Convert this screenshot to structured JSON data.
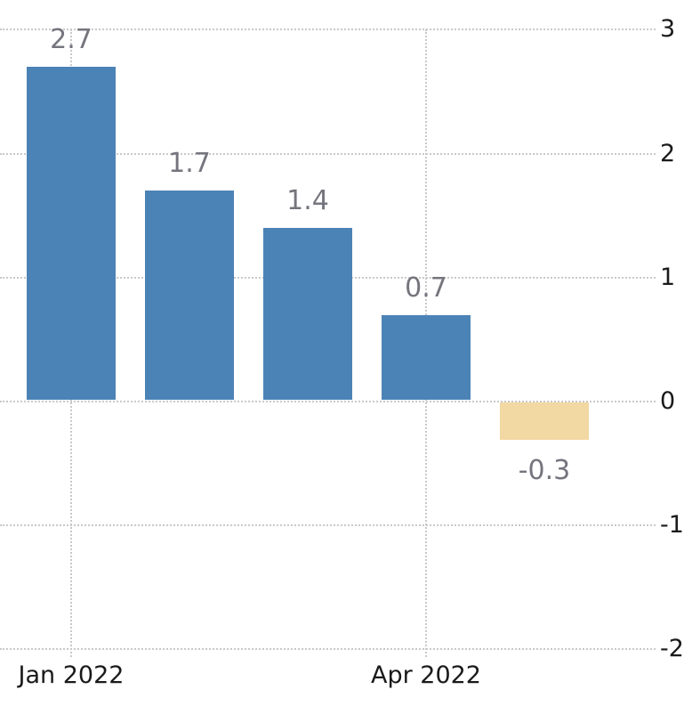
{
  "chart_data": {
    "type": "bar",
    "title": "",
    "xlabel": "",
    "ylabel": "",
    "values": [
      2.7,
      1.7,
      1.4,
      0.7,
      -0.3
    ],
    "data_labels": [
      "2.7",
      "1.7",
      "1.4",
      "0.7",
      "-0.3"
    ],
    "x_tick_labels": [
      {
        "index": 0,
        "label": "Jan 2022"
      },
      {
        "index": 3,
        "label": "Apr 2022"
      }
    ],
    "y_ticks": [
      {
        "value": 3,
        "label": "3"
      },
      {
        "value": 2,
        "label": "2"
      },
      {
        "value": 1,
        "label": "1"
      },
      {
        "value": 0,
        "label": "0"
      },
      {
        "value": -1,
        "label": "-1"
      },
      {
        "value": -2,
        "label": "-2"
      }
    ],
    "ylim": [
      -2,
      3
    ],
    "grid": "dotted",
    "legend": "none",
    "y_axis_side": "right",
    "colors": {
      "positive_bar": "#4B83B6",
      "negative_bar": "#F2D8A3",
      "value_label": "#75757E",
      "axis_label": "#1A1A1A",
      "gridline": "#C9C9C9",
      "background": "#FFFFFF"
    }
  }
}
